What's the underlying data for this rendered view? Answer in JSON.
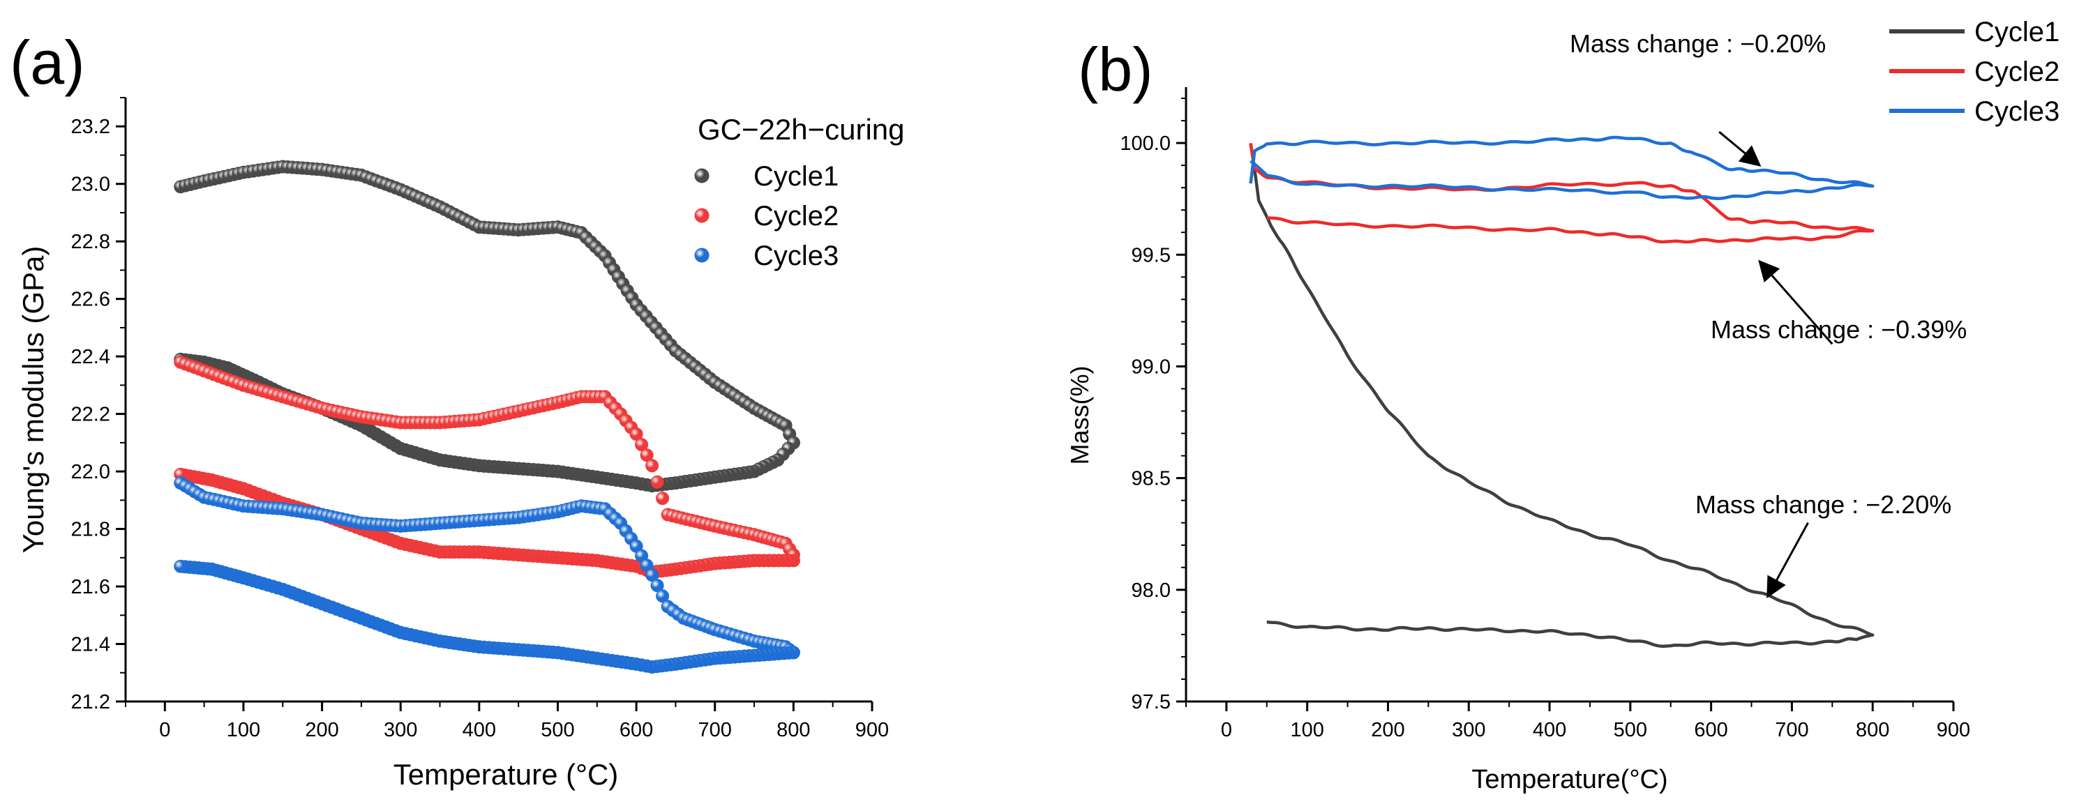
{
  "chart_data": [
    {
      "panel_label": "(a)",
      "type": "scatter",
      "xlabel": "Temperature (°C)",
      "ylabel": "Young's modulus (GPa)",
      "xlim": [
        -50,
        900
      ],
      "ylim": [
        21.2,
        23.3
      ],
      "xticks": [
        "0",
        "100",
        "200",
        "300",
        "400",
        "500",
        "600",
        "700",
        "800",
        "900"
      ],
      "yticks": [
        "21.2",
        "21.4",
        "21.6",
        "21.8",
        "22.0",
        "22.2",
        "22.4",
        "22.6",
        "22.8",
        "23.0",
        "23.2"
      ],
      "legend_title": "GC−22h−curing",
      "legend_position": "top-right",
      "series": [
        {
          "name": "Cycle1",
          "color": "#4a4a4a",
          "heating": {
            "x": [
              20,
              50,
              100,
              150,
              200,
              250,
              300,
              350,
              400,
              450,
              500,
              530,
              560,
              600,
              650,
              700,
              750,
              790,
              800
            ],
            "y": [
              22.99,
              23.01,
              23.04,
              23.06,
              23.05,
              23.03,
              22.98,
              22.92,
              22.85,
              22.84,
              22.85,
              22.83,
              22.75,
              22.58,
              22.42,
              22.31,
              22.22,
              22.16,
              22.1
            ]
          },
          "cooling": {
            "x": [
              800,
              780,
              750,
              700,
              650,
              620,
              600,
              550,
              500,
              450,
              400,
              350,
              300,
              250,
              200,
              150,
              120,
              80,
              50,
              20
            ],
            "y": [
              22.1,
              22.04,
              22.0,
              21.98,
              21.96,
              21.95,
              21.96,
              21.98,
              22.0,
              22.01,
              22.02,
              22.04,
              22.08,
              22.16,
              22.22,
              22.27,
              22.31,
              22.36,
              22.38,
              22.39
            ]
          }
        },
        {
          "name": "Cycle2",
          "color": "#ee3a3a",
          "heating": {
            "x": [
              20,
              50,
              100,
              150,
              200,
              250,
              300,
              350,
              400,
              450,
              500,
              530,
              560,
              580,
              600,
              620,
              640,
              700,
              750,
              790,
              800
            ],
            "y": [
              22.38,
              22.35,
              22.3,
              22.26,
              22.22,
              22.19,
              22.17,
              22.17,
              22.18,
              22.21,
              22.24,
              22.26,
              22.26,
              22.2,
              22.13,
              22.02,
              21.85,
              21.81,
              21.78,
              21.75,
              21.71
            ]
          },
          "cooling": {
            "x": [
              800,
              750,
              700,
              650,
              620,
              600,
              550,
              500,
              450,
              400,
              350,
              300,
              250,
              200,
              150,
              100,
              60,
              20
            ],
            "y": [
              21.69,
              21.69,
              21.68,
              21.66,
              21.65,
              21.67,
              21.69,
              21.7,
              21.71,
              21.72,
              21.72,
              21.75,
              21.8,
              21.85,
              21.89,
              21.94,
              21.97,
              21.99
            ]
          }
        },
        {
          "name": "Cycle3",
          "color": "#1f6fd6",
          "heating": {
            "x": [
              20,
              50,
              100,
              150,
              200,
              250,
              300,
              350,
              400,
              450,
              500,
              530,
              560,
              580,
              600,
              620,
              640,
              660,
              700,
              750,
              790,
              800
            ],
            "y": [
              21.96,
              21.91,
              21.88,
              21.87,
              21.85,
              21.82,
              21.81,
              21.82,
              21.83,
              21.84,
              21.86,
              21.88,
              21.87,
              21.82,
              21.74,
              21.64,
              21.53,
              21.49,
              21.45,
              21.41,
              21.39,
              21.37
            ]
          },
          "cooling": {
            "x": [
              800,
              750,
              700,
              650,
              620,
              600,
              550,
              500,
              450,
              400,
              350,
              300,
              250,
              200,
              150,
              100,
              60,
              20
            ],
            "y": [
              21.37,
              21.36,
              21.35,
              21.33,
              21.32,
              21.33,
              21.35,
              21.37,
              21.38,
              21.39,
              21.41,
              21.44,
              21.49,
              21.54,
              21.59,
              21.63,
              21.66,
              21.67
            ]
          }
        }
      ]
    },
    {
      "panel_label": "(b)",
      "type": "line",
      "xlabel": "Temperature(°C)",
      "ylabel": "Mass(%)",
      "xlim": [
        -50,
        900
      ],
      "ylim": [
        97.5,
        100.25
      ],
      "xticks": [
        "0",
        "100",
        "200",
        "300",
        "400",
        "500",
        "600",
        "700",
        "800",
        "900"
      ],
      "yticks": [
        "97.5",
        "98.0",
        "98.5",
        "99.0",
        "99.5",
        "100.0"
      ],
      "legend_position": "top-right",
      "series": [
        {
          "name": "Cycle1",
          "color": "#3f3f3f",
          "x": [
            30,
            40,
            55,
            70,
            100,
            150,
            200,
            250,
            300,
            350,
            400,
            450,
            500,
            550,
            600,
            650,
            700,
            750,
            800,
            780,
            750,
            700,
            650,
            600,
            550,
            500,
            450,
            400,
            350,
            300,
            250,
            200,
            150,
            100,
            50
          ],
          "y": [
            100.0,
            99.75,
            99.63,
            99.55,
            99.35,
            99.05,
            98.8,
            98.6,
            98.48,
            98.39,
            98.31,
            98.25,
            98.2,
            98.13,
            98.07,
            98.0,
            97.93,
            97.85,
            97.8,
            97.78,
            97.77,
            97.76,
            97.76,
            97.76,
            97.75,
            97.77,
            97.8,
            97.81,
            97.82,
            97.82,
            97.83,
            97.82,
            97.83,
            97.83,
            97.86
          ]
        },
        {
          "name": "Cycle2",
          "color": "#ee2a2a",
          "x": [
            30,
            35,
            50,
            100,
            200,
            300,
            400,
            500,
            550,
            580,
            600,
            620,
            650,
            700,
            750,
            800,
            750,
            700,
            650,
            600,
            550,
            500,
            450,
            400,
            300,
            200,
            100,
            50
          ],
          "y": [
            100.0,
            99.88,
            99.85,
            99.82,
            99.8,
            99.79,
            99.81,
            99.82,
            99.81,
            99.78,
            99.72,
            99.67,
            99.65,
            99.64,
            99.62,
            99.61,
            99.58,
            99.57,
            99.57,
            99.56,
            99.56,
            99.58,
            99.6,
            99.61,
            99.62,
            99.63,
            99.64,
            99.67
          ]
        },
        {
          "name": "Cycle3",
          "color": "#1f6fd6",
          "x": [
            30,
            35,
            50,
            100,
            200,
            300,
            400,
            450,
            500,
            550,
            580,
            600,
            620,
            650,
            700,
            750,
            800,
            750,
            700,
            650,
            600,
            550,
            500,
            400,
            300,
            200,
            100,
            50,
            30
          ],
          "y": [
            99.82,
            99.96,
            100.0,
            100.0,
            100.0,
            100.0,
            100.01,
            100.02,
            100.02,
            100.0,
            99.95,
            99.92,
            99.89,
            99.88,
            99.86,
            99.83,
            99.81,
            99.8,
            99.78,
            99.77,
            99.75,
            99.76,
            99.78,
            99.79,
            99.8,
            99.81,
            99.81,
            99.86,
            99.92
          ]
        }
      ],
      "annotations": [
        {
          "text": "Mass change : −0.20%",
          "from": [
            610,
            100.05
          ],
          "to": [
            660,
            99.9
          ]
        },
        {
          "text": "Mass change : −0.39%",
          "from": [
            750,
            99.1
          ],
          "to": [
            660,
            99.47
          ]
        },
        {
          "text": "Mass change : −2.20%",
          "from": [
            720,
            98.3
          ],
          "to": [
            670,
            97.97
          ]
        }
      ]
    }
  ]
}
